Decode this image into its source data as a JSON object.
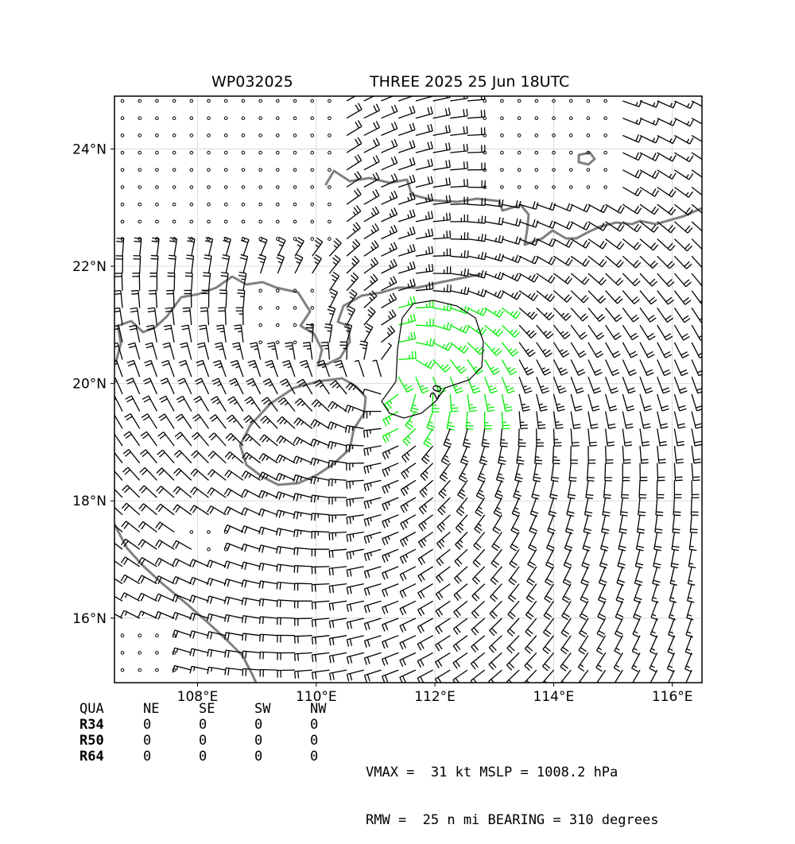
{
  "title": {
    "storm_id": "WP032025",
    "storm_label": "THREE 2025 25 Jun 18UTC"
  },
  "axes": {
    "lon_ticks": [
      "108°E",
      "110°E",
      "112°E",
      "114°E",
      "116°E"
    ],
    "lat_ticks": [
      "24°N",
      "22°N",
      "20°N",
      "18°N",
      "16°N"
    ]
  },
  "contour": {
    "label": "20"
  },
  "colors": {
    "coast": "#808080",
    "barb": "#000000",
    "barb_strong": "#00ee00",
    "grid": "#d0d0d0"
  },
  "radii": {
    "headers": [
      "QUA",
      "NE",
      "SE",
      "SW",
      "NW"
    ],
    "rows": [
      {
        "label": "R34",
        "values": [
          "0",
          "0",
          "0",
          "0"
        ]
      },
      {
        "label": "R50",
        "values": [
          "0",
          "0",
          "0",
          "0"
        ]
      },
      {
        "label": "R64",
        "values": [
          "0",
          "0",
          "0",
          "0"
        ]
      }
    ]
  },
  "stats": {
    "line1": "VMAX =  31 kt MSLP = 1008.2 hPa",
    "line2": "RMW =  25 n mi BEARING = 310 degrees"
  },
  "chart_data": {
    "type": "map",
    "title": "WP032025     THREE 2025 25 Jun 18UTC",
    "lon_range": [
      106.6,
      116.5
    ],
    "lat_range": [
      14.9,
      24.9
    ],
    "storm_center": {
      "lon": 111.3,
      "lat": 20.1
    },
    "vmax_kt": 31,
    "mslp_hpa": 1008.2,
    "rmw_nmi": 25,
    "bearing_deg": 310,
    "contour_levels_kt": [
      20
    ]
  }
}
